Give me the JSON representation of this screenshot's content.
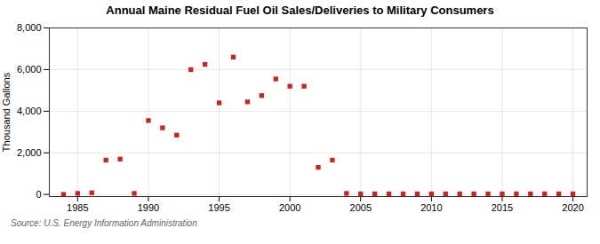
{
  "chart_data": {
    "type": "scatter",
    "title": "Annual Maine Residual Fuel Oil Sales/Deliveries to Military Consumers",
    "ylabel": "Thousand Gallons",
    "caption": "Source: U.S. Energy Information Administration",
    "color": "#cc2222",
    "marker": "square",
    "grid": true,
    "x": [
      1984,
      1985,
      1986,
      1987,
      1988,
      1989,
      1990,
      1991,
      1992,
      1993,
      1994,
      1995,
      1996,
      1997,
      1998,
      1999,
      2000,
      2001,
      2002,
      2003,
      2004,
      2005,
      2006,
      2007,
      2008,
      2009,
      2010,
      2011,
      2012,
      2013,
      2014,
      2015,
      2016,
      2017,
      2018,
      2019,
      2020
    ],
    "values": [
      5,
      50,
      80,
      1650,
      1700,
      50,
      3550,
      3200,
      2850,
      6000,
      6250,
      4400,
      6600,
      4450,
      4750,
      5550,
      5200,
      5200,
      1300,
      1650,
      50,
      30,
      30,
      30,
      30,
      30,
      30,
      30,
      30,
      30,
      30,
      30,
      30,
      30,
      30,
      30,
      30
    ],
    "xlim": [
      1983,
      2021
    ],
    "xticks": [
      1985,
      1990,
      1995,
      2000,
      2005,
      2010,
      2015,
      2020
    ],
    "ylim": [
      -100,
      8000
    ],
    "yticks": [
      0,
      {
        "value": 2000,
        "label": "2,000"
      },
      {
        "value": 4000,
        "label": "4,000"
      },
      {
        "value": 6000,
        "label": "6,000"
      },
      {
        "value": 8000,
        "label": "8,000"
      }
    ]
  }
}
